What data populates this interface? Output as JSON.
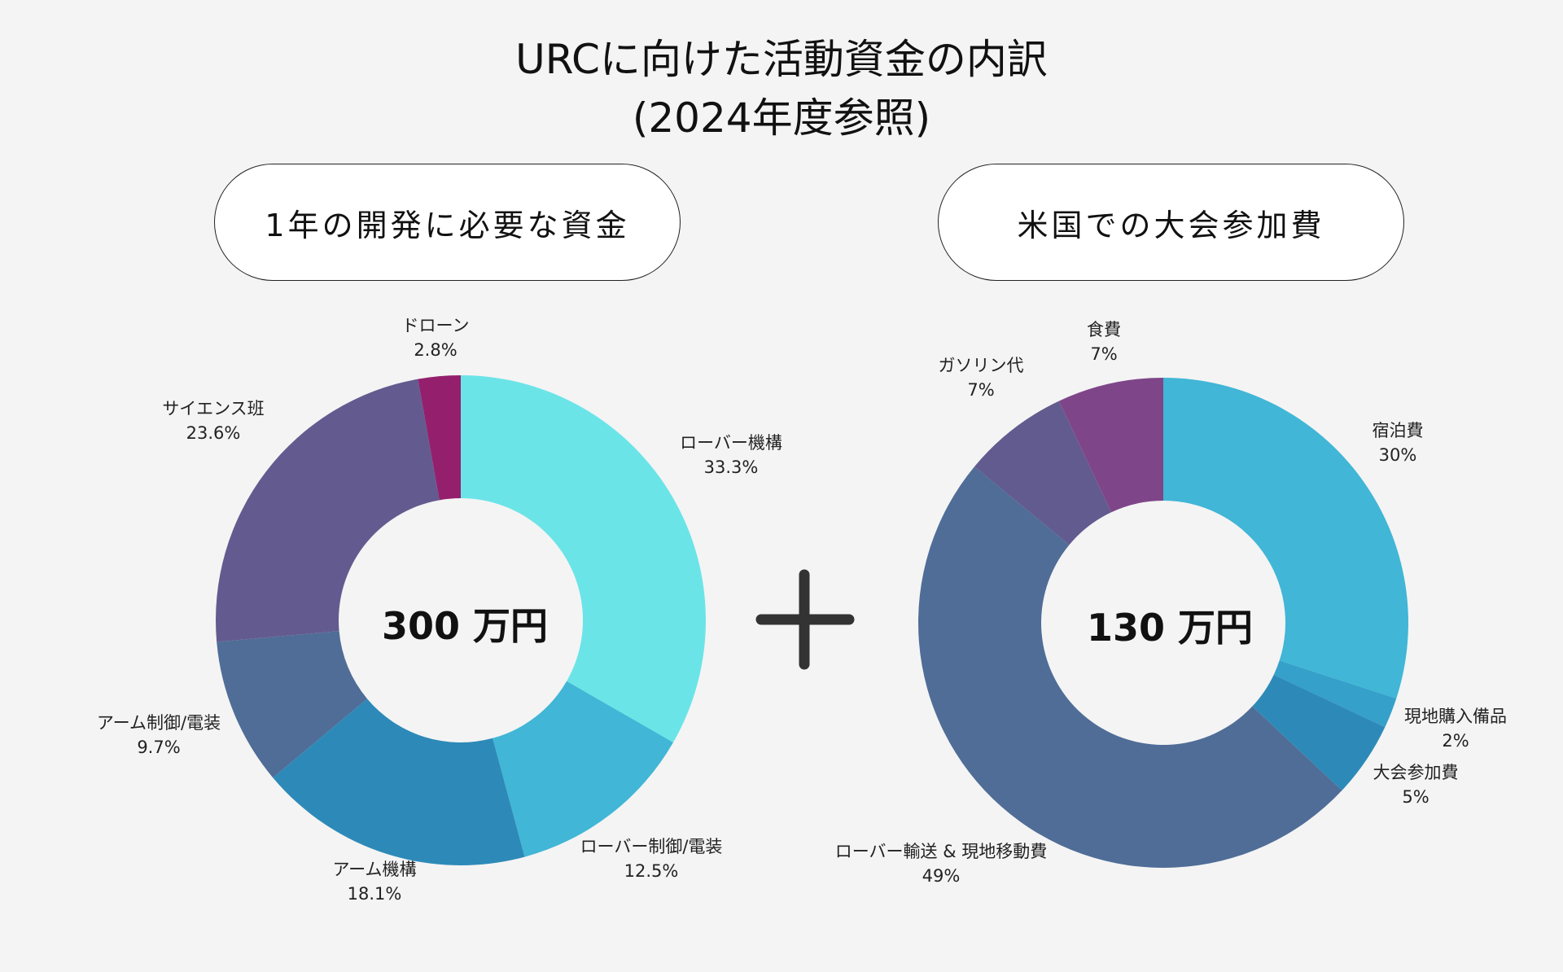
{
  "title_line1": "URCに向けた活動資金の内訳",
  "title_line2": "(2024年度参照)",
  "plus_sign": "+",
  "chart_data": [
    {
      "type": "pie",
      "subtype": "donut",
      "title": "1年の開発に必要な資金",
      "center_label": "300 万円",
      "categories": [
        "ローバー機構",
        "ローバー制御/電装",
        "アーム機構",
        "アーム制御/電装",
        "サイエンス班",
        "ドローン"
      ],
      "values": [
        33.3,
        12.5,
        18.1,
        9.7,
        23.6,
        2.8
      ],
      "value_labels": [
        "33.3%",
        "12.5%",
        "18.1%",
        "9.7%",
        "23.6%",
        "2.8%"
      ],
      "colors": [
        "#6be4e8",
        "#41b6d6",
        "#2d8ab8",
        "#4f6d97",
        "#635b8f",
        "#94206d"
      ]
    },
    {
      "type": "pie",
      "subtype": "donut",
      "title": "米国での大会参加費",
      "center_label": "130 万円",
      "categories": [
        "宿泊費",
        "現地購入備品",
        "大会参加費",
        "ローバー輸送 & 現地移動費",
        "ガソリン代",
        "食費"
      ],
      "values": [
        30,
        2,
        5,
        49,
        7,
        7
      ],
      "value_labels": [
        "30%",
        "2%",
        "5%",
        "49%",
        "7%",
        "7%"
      ],
      "colors": [
        "#41b6d6",
        "#35a0c9",
        "#2d8ab8",
        "#4f6d97",
        "#625b8f",
        "#7e4688"
      ]
    }
  ]
}
